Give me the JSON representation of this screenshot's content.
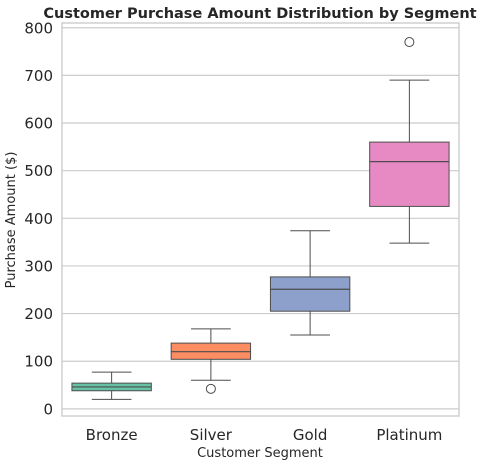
{
  "chart_data": {
    "type": "box",
    "title": "Customer Purchase Amount Distribution by Segment",
    "xlabel": "Customer Segment",
    "ylabel": "Purchase Amount ($)",
    "ylim": [
      -15,
      810
    ],
    "yticks": [
      0,
      100,
      200,
      300,
      400,
      500,
      600,
      700,
      800
    ],
    "grid": true,
    "categories": [
      "Bronze",
      "Silver",
      "Gold",
      "Platinum"
    ],
    "colors": [
      "#66c2a5",
      "#fc8d62",
      "#8da0cb",
      "#e78ac3"
    ],
    "boxes": [
      {
        "category": "Bronze",
        "whisker_low": 20,
        "q1": 38,
        "median": 46,
        "q3": 54,
        "whisker_high": 77,
        "outliers": []
      },
      {
        "category": "Silver",
        "whisker_low": 60,
        "q1": 104,
        "median": 120,
        "q3": 138,
        "whisker_high": 168,
        "outliers": [
          42
        ]
      },
      {
        "category": "Gold",
        "whisker_low": 155,
        "q1": 205,
        "median": 251,
        "q3": 277,
        "whisker_high": 374,
        "outliers": []
      },
      {
        "category": "Platinum",
        "whisker_low": 348,
        "q1": 425,
        "median": 519,
        "q3": 560,
        "whisker_high": 690,
        "outliers": [
          770
        ]
      }
    ]
  }
}
